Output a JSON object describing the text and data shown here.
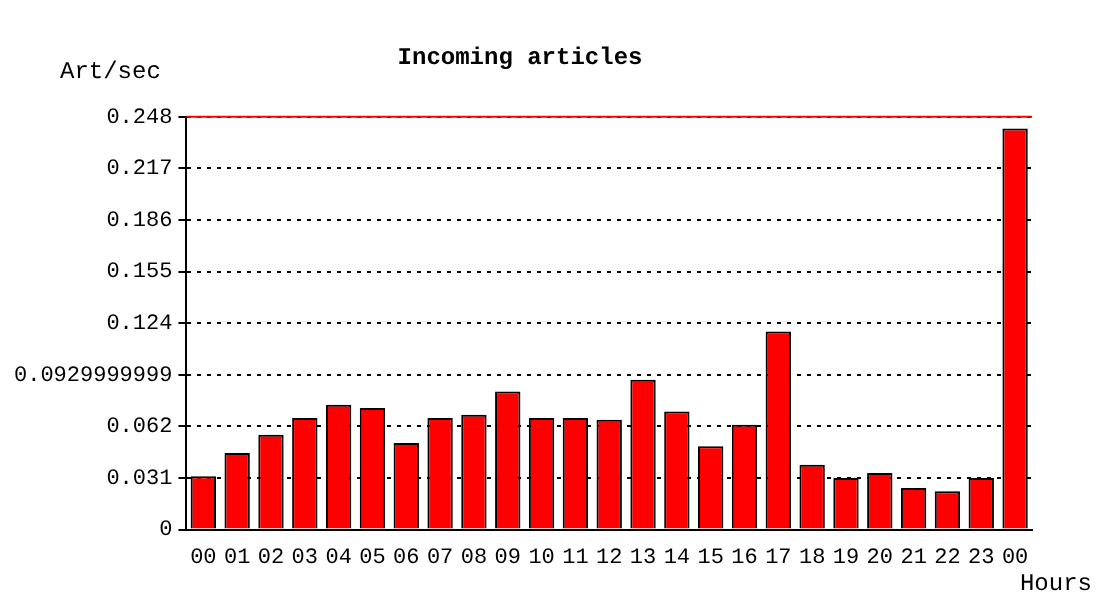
{
  "chart_data": {
    "type": "bar",
    "title": "Incoming articles",
    "xlabel": "Hours",
    "ylabel": "Art/sec",
    "categories": [
      "00",
      "01",
      "02",
      "03",
      "04",
      "05",
      "06",
      "07",
      "08",
      "09",
      "10",
      "11",
      "12",
      "13",
      "14",
      "15",
      "16",
      "17",
      "18",
      "19",
      "20",
      "21",
      "22",
      "23",
      "00"
    ],
    "values": [
      0.032,
      0.046,
      0.057,
      0.067,
      0.075,
      0.073,
      0.052,
      0.067,
      0.069,
      0.083,
      0.067,
      0.067,
      0.066,
      0.09,
      0.071,
      0.05,
      0.063,
      0.119,
      0.039,
      0.031,
      0.034,
      0.025,
      0.023,
      0.031,
      0.241
    ],
    "color": "#ff0000",
    "ylim": [
      0,
      0.248
    ],
    "yticks": [
      0,
      0.031,
      0.062,
      0.0929999999,
      0.124,
      0.155,
      0.186,
      0.217,
      0.248
    ],
    "ref_lines": [
      {
        "axis": "y",
        "value": 0.248,
        "color": "#ff0000"
      }
    ],
    "grid": "y",
    "legend": false
  }
}
